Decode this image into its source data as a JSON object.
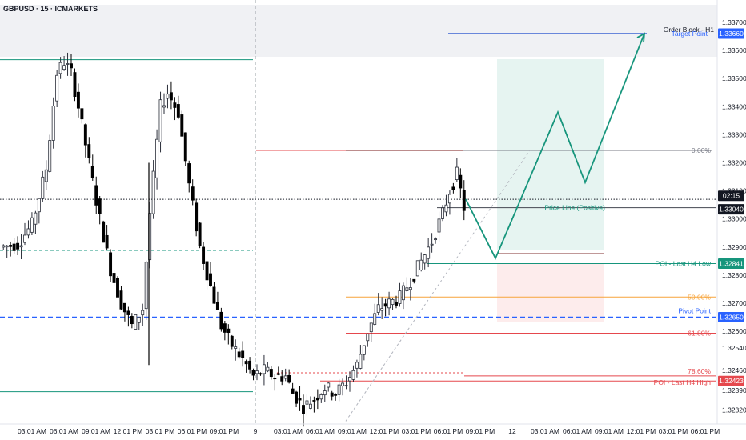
{
  "header": {
    "symbol_line": "GBPUSD · 15 · ICMARKETS"
  },
  "axis": {
    "price_ticks": [
      "1.33700",
      "1.33600",
      "1.33500",
      "1.33400",
      "1.33300",
      "1.33200",
      "1.33100",
      "1.33000",
      "1.32900",
      "1.32800",
      "1.32700",
      "1.32600",
      "1.32540",
      "1.32460",
      "1.32390",
      "1.32320"
    ],
    "time_ticks": [
      "03:01 AM",
      "06:01 AM",
      "09:01 AM",
      "12:01 PM",
      "03:01 PM",
      "06:01 PM",
      "09:01 PM",
      "9",
      "03:01 AM",
      "06:01 AM",
      "09:01 AM",
      "12:01 PM",
      "03:01 PM",
      "06:01 PM",
      "09:01 PM",
      "12",
      "03:01 AM",
      "06:01 AM",
      "09:01 AM",
      "12:01 PM",
      "03:01 PM",
      "06:01 PM"
    ]
  },
  "labels": {
    "order_block": "Order Block - H1",
    "target_point": "Target Point",
    "fib_0": "0.00%",
    "price_line": "Price Line (Positive)",
    "poi_low": "POI - Last H4 Low",
    "fib_50": "50.00%",
    "pivot": "Pivot Point",
    "fib_618": "61.80%",
    "fib_786": "78.60%",
    "poi_high": "POI - Last H4 High"
  },
  "price_tags": {
    "target": "1.33660",
    "countdown": "02:15",
    "current": "1.33040",
    "poi_low": "1.32841",
    "pivot": "1.32650",
    "poi_high": "1.32423"
  },
  "colors": {
    "bull": "#2a2e39",
    "bear": "#000000",
    "blue": "#1848cc",
    "teal": "#16957c",
    "red": "#e5484d",
    "orange": "#f7a43a",
    "target_blue": "#2962ff",
    "dark": "#131722"
  },
  "chart_data": {
    "type": "candlestick",
    "symbol": "GBPUSD",
    "timeframe": "15",
    "exchange": "ICMARKETS",
    "ylim": [
      1.3228,
      1.3374
    ],
    "x_ticks": [
      "03:01 AM",
      "06:01 AM",
      "09:01 AM",
      "12:01 PM",
      "03:01 PM",
      "06:01 PM",
      "09:01 PM",
      "9",
      "03:01 AM",
      "06:01 AM",
      "09:01 AM",
      "12:01 PM",
      "03:01 PM",
      "06:01 PM",
      "09:01 PM",
      "12",
      "03:01 AM",
      "06:01 AM",
      "09:01 AM",
      "12:01 PM",
      "03:01 PM",
      "06:01 PM"
    ],
    "price_path_points": [
      [
        0,
        1.329
      ],
      [
        5,
        1.3291
      ],
      [
        9,
        1.3298
      ],
      [
        13,
        1.3318
      ],
      [
        16,
        1.3352
      ],
      [
        18,
        1.3356
      ],
      [
        20,
        1.3352
      ],
      [
        22,
        1.334
      ],
      [
        25,
        1.332
      ],
      [
        28,
        1.33
      ],
      [
        31,
        1.3282
      ],
      [
        34,
        1.327
      ],
      [
        37,
        1.3262
      ],
      [
        40,
        1.3268
      ],
      [
        42,
        1.3302
      ],
      [
        45,
        1.334
      ],
      [
        47,
        1.3345
      ],
      [
        50,
        1.3338
      ],
      [
        53,
        1.3312
      ],
      [
        56,
        1.329
      ],
      [
        59,
        1.3276
      ],
      [
        62,
        1.3262
      ],
      [
        65,
        1.3255
      ],
      [
        68,
        1.325
      ],
      [
        71,
        1.3244
      ],
      [
        74,
        1.3246
      ],
      [
        77,
        1.3244
      ],
      [
        80,
        1.3244
      ],
      [
        82,
        1.3238
      ],
      [
        85,
        1.3233
      ],
      [
        88,
        1.3236
      ],
      [
        91,
        1.324
      ],
      [
        94,
        1.3238
      ],
      [
        97,
        1.3242
      ],
      [
        100,
        1.3248
      ],
      [
        103,
        1.326
      ],
      [
        106,
        1.3268
      ],
      [
        109,
        1.327
      ],
      [
        112,
        1.3272
      ],
      [
        115,
        1.3278
      ],
      [
        118,
        1.3285
      ],
      [
        121,
        1.3292
      ],
      [
        124,
        1.3302
      ],
      [
        126,
        1.331
      ],
      [
        128,
        1.3316
      ],
      [
        130,
        1.3304
      ]
    ],
    "horizontal_levels": [
      {
        "name": "Order Block - H1",
        "price": 1.3366
      },
      {
        "name": "Target Point",
        "price": 1.3366
      },
      {
        "name": "0.00%",
        "price": 1.33244
      },
      {
        "name": "Price Line (Positive)",
        "price": 1.3304
      },
      {
        "name": "POI - Last H4 Low",
        "price": 1.32841
      },
      {
        "name": "50.00%",
        "price": 1.32722
      },
      {
        "name": "Pivot Point",
        "price": 1.3265
      },
      {
        "name": "61.80%",
        "price": 1.32593
      },
      {
        "name": "78.60%",
        "price": 1.32441
      },
      {
        "name": "POI - Last H4 High",
        "price": 1.32423
      }
    ],
    "projection_path": [
      1.3307,
      1.3286,
      1.3338,
      1.3313,
      1.3366
    ],
    "current_price": 1.3304
  }
}
